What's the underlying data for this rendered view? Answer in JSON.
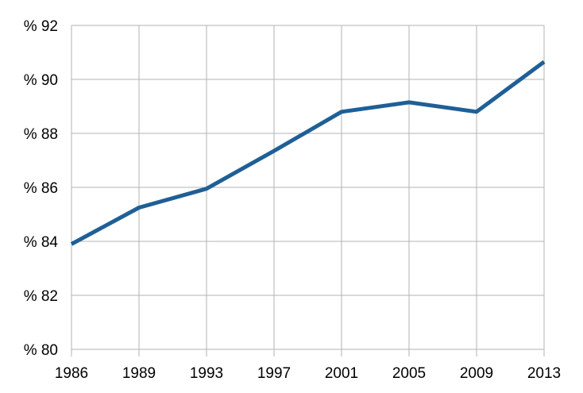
{
  "chart_data": {
    "type": "line",
    "categories": [
      "1986",
      "1989",
      "1993",
      "1997",
      "2001",
      "2005",
      "2009",
      "2013"
    ],
    "series": [
      {
        "values": [
          83.9,
          85.25,
          85.95,
          87.35,
          88.8,
          89.15,
          88.8,
          90.65
        ],
        "color": "#1f5f96"
      }
    ],
    "ylim": [
      80,
      92
    ],
    "y_ticks": [
      80,
      82,
      84,
      86,
      88,
      90,
      92
    ],
    "y_tick_labels": [
      "% 80",
      "% 82",
      "% 84",
      "% 86",
      "% 88",
      "% 90",
      "% 92"
    ],
    "grid": true,
    "legend": false
  }
}
